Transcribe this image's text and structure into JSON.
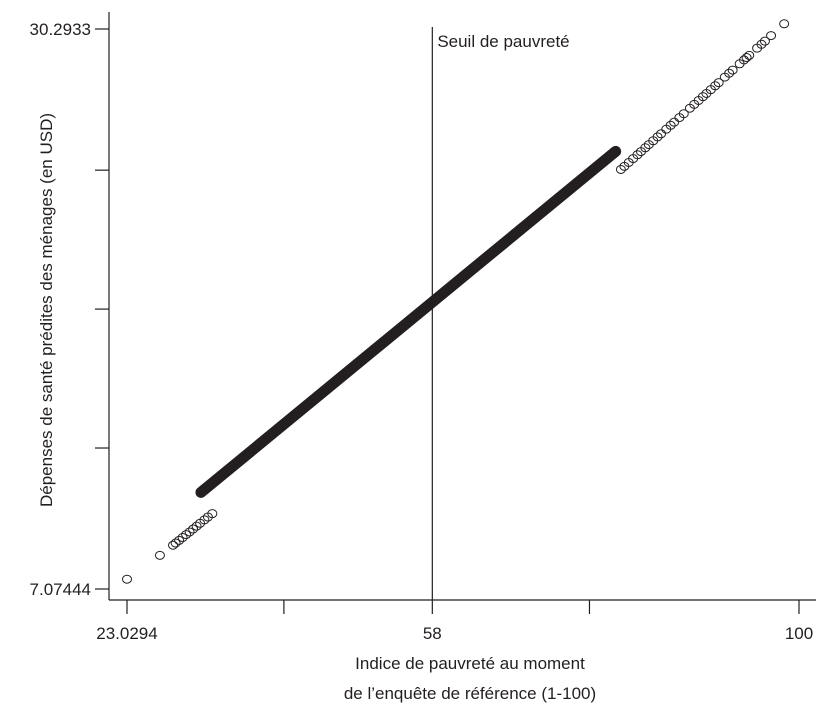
{
  "chart_data": {
    "type": "scatter",
    "title": "",
    "xlabel_lines": [
      "Indice de pauvreté au moment",
      "de l’enquête de référence (1-100)"
    ],
    "ylabel": "Dépenses de santé prédites des ménages (en USD)",
    "xlim": [
      23.0294,
      100
    ],
    "ylim": [
      7.07444,
      30.2933
    ],
    "x_tick_labels": [
      "23.0294",
      "58",
      "100"
    ],
    "x_ticks": [
      23.0294,
      41.0,
      58,
      76.0,
      100
    ],
    "y_tick_labels": [
      "7.07444",
      "30.2933"
    ],
    "y_ticks": [
      7.07444,
      12.92,
      18.68,
      24.44,
      30.2933
    ],
    "reference_line": {
      "x": 58,
      "label": "Seuil de pauvreté"
    },
    "grid": false,
    "marker": "hollow-circle",
    "dense_segment": {
      "x": [
        31.5,
        79.0
      ],
      "y": [
        11.08,
        25.22
      ]
    },
    "points": [
      [
        23.03,
        7.48
      ],
      [
        26.8,
        8.47
      ],
      [
        28.3,
        8.89
      ],
      [
        28.6,
        8.98
      ],
      [
        29.0,
        9.09
      ],
      [
        29.4,
        9.21
      ],
      [
        29.8,
        9.33
      ],
      [
        30.2,
        9.44
      ],
      [
        30.6,
        9.56
      ],
      [
        31.0,
        9.68
      ],
      [
        31.4,
        9.8
      ],
      [
        31.9,
        9.94
      ],
      [
        32.3,
        10.06
      ],
      [
        32.8,
        10.2
      ],
      [
        79.6,
        24.47
      ],
      [
        80.0,
        24.6
      ],
      [
        80.5,
        24.76
      ],
      [
        81.0,
        24.92
      ],
      [
        81.5,
        25.08
      ],
      [
        81.9,
        25.21
      ],
      [
        82.4,
        25.37
      ],
      [
        82.8,
        25.5
      ],
      [
        83.3,
        25.66
      ],
      [
        83.8,
        25.82
      ],
      [
        84.2,
        25.95
      ],
      [
        84.8,
        26.14
      ],
      [
        85.3,
        26.3
      ],
      [
        85.7,
        26.43
      ],
      [
        86.3,
        26.62
      ],
      [
        86.8,
        26.78
      ],
      [
        87.5,
        27.01
      ],
      [
        88.0,
        27.17
      ],
      [
        88.5,
        27.33
      ],
      [
        89.0,
        27.49
      ],
      [
        89.4,
        27.62
      ],
      [
        89.9,
        27.78
      ],
      [
        90.4,
        27.94
      ],
      [
        90.8,
        28.07
      ],
      [
        91.5,
        28.3
      ],
      [
        92.0,
        28.46
      ],
      [
        92.4,
        28.59
      ],
      [
        93.2,
        28.85
      ],
      [
        93.7,
        29.01
      ],
      [
        94.0,
        29.11
      ],
      [
        94.3,
        29.2
      ],
      [
        95.2,
        29.5
      ],
      [
        95.7,
        29.66
      ],
      [
        96.1,
        29.79
      ],
      [
        96.8,
        30.02
      ],
      [
        98.3,
        30.51
      ]
    ]
  }
}
